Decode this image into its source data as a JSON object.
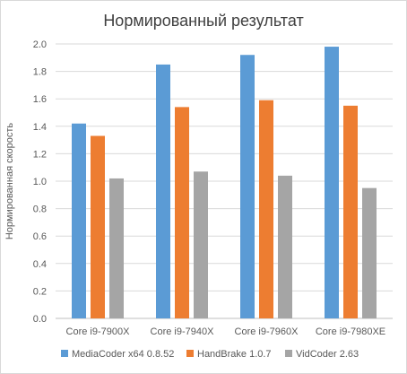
{
  "chart_data": {
    "type": "bar",
    "title": "Нормированный результат",
    "ylabel": "Нормированная скорость",
    "xlabel": "",
    "ylim": [
      0,
      2.0
    ],
    "ytick_step": 0.2,
    "yticks": [
      "0.0",
      "0.2",
      "0.4",
      "0.6",
      "0.8",
      "1.0",
      "1.2",
      "1.4",
      "1.6",
      "1.8",
      "2.0"
    ],
    "grid": true,
    "legend_position": "bottom",
    "categories": [
      "Core i9-7900X",
      "Core i9-7940X",
      "Core i9-7960X",
      "Core i9-7980XE"
    ],
    "series": [
      {
        "name": "MediaCoder x64 0.8.52",
        "color": "#5b9bd5",
        "values": [
          1.42,
          1.85,
          1.92,
          1.98
        ]
      },
      {
        "name": "HandBrake 1.0.7",
        "color": "#ed7d31",
        "values": [
          1.33,
          1.54,
          1.59,
          1.55
        ]
      },
      {
        "name": "VidCoder 2.63",
        "color": "#a5a5a5",
        "values": [
          1.02,
          1.07,
          1.04,
          0.95
        ]
      }
    ]
  }
}
